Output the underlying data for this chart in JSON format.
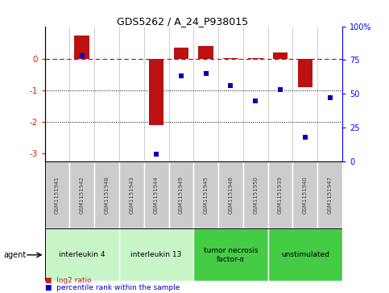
{
  "title": "GDS5262 / A_24_P938015",
  "samples": [
    "GSM1151941",
    "GSM1151942",
    "GSM1151948",
    "GSM1151943",
    "GSM1151944",
    "GSM1151949",
    "GSM1151945",
    "GSM1151946",
    "GSM1151950",
    "GSM1151939",
    "GSM1151940",
    "GSM1151947"
  ],
  "log2_ratio": [
    0.0,
    0.75,
    0.0,
    0.0,
    -2.1,
    0.38,
    0.42,
    0.05,
    0.05,
    0.22,
    -0.88,
    0.02
  ],
  "percentile": [
    null,
    78,
    null,
    null,
    5,
    63,
    65,
    56,
    45,
    53,
    18,
    47
  ],
  "agents": [
    {
      "label": "interleukin 4",
      "start": 0,
      "end": 3,
      "color": "#c8f5c8"
    },
    {
      "label": "interleukin 13",
      "start": 3,
      "end": 6,
      "color": "#c8f5c8"
    },
    {
      "label": "tumor necrosis\nfactor-α",
      "start": 6,
      "end": 9,
      "color": "#44cc44"
    },
    {
      "label": "unstimulated",
      "start": 9,
      "end": 12,
      "color": "#44cc44"
    }
  ],
  "ylim_left": [
    -3.25,
    1.05
  ],
  "ylim_right": [
    0,
    100
  ],
  "yticks_left": [
    0,
    -1,
    -2,
    -3
  ],
  "yticks_right": [
    0,
    25,
    50,
    75,
    100
  ],
  "bar_color": "#bb1111",
  "dot_color": "#0000bb",
  "zero_line_color": "#cc0000",
  "tick_color_left": "#cc2200",
  "background_color": "#ffffff",
  "legend_log2_color": "#cc2222",
  "legend_percentile_color": "#0000cc",
  "sample_box_color": "#cccccc",
  "sample_text_color": "#444444"
}
